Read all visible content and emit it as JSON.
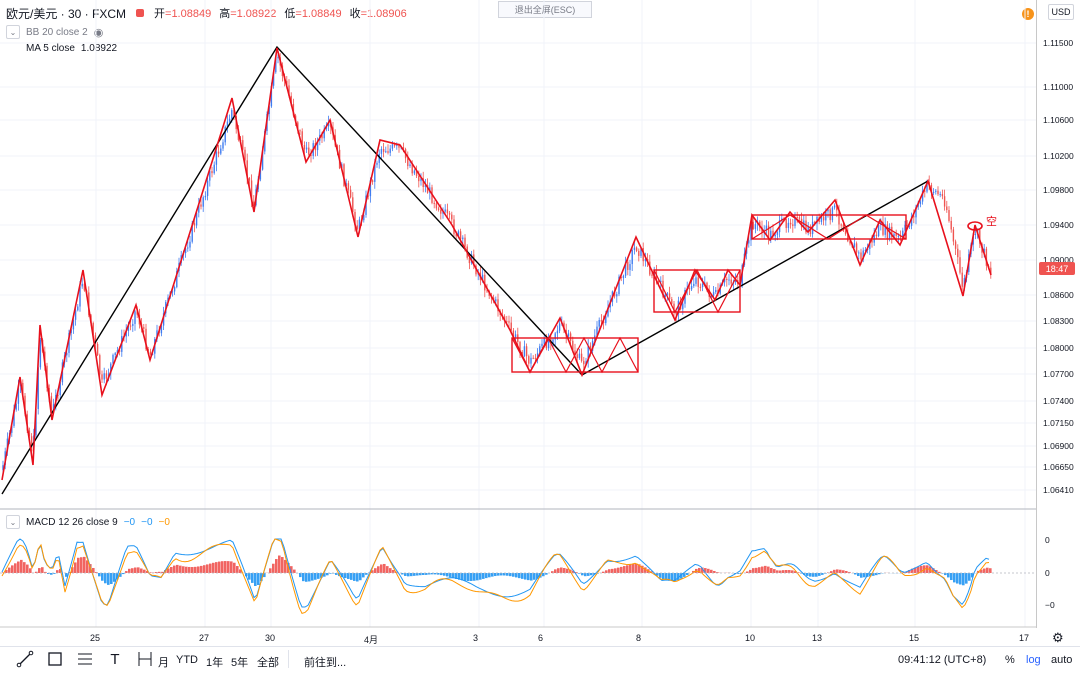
{
  "header": {
    "symbol": "欧元/美元 · 30 · FXCM",
    "open_label": "开",
    "open": "=1.08849",
    "high_label": "高",
    "high": "=1.08922",
    "low_label": "低",
    "low": "=1.08849",
    "close_label": "收",
    "close": "=1.08906"
  },
  "indicators": {
    "bb": "BB 20 close 2",
    "ma_label": "MA 5 close",
    "ma_value": "1.08922",
    "macd": "MACD 12 26 close 9",
    "macd_v1": "−0",
    "macd_v2": "−0",
    "macd_v3": "−0"
  },
  "exit_fullscreen": "退出全屏(ESC)",
  "currency": "USD",
  "warning_glyph": "!",
  "countdown": "18:47",
  "annotation": "空",
  "price_axis": [
    "1.11500",
    "1.11000",
    "1.10600",
    "1.10200",
    "1.09800",
    "1.09400",
    "1.09000",
    "1.08600",
    "1.08300",
    "1.08000",
    "1.07700",
    "1.07400",
    "1.07150",
    "1.06900",
    "1.06650",
    "1.06410"
  ],
  "macd_axis": [
    "0",
    "0",
    "−0"
  ],
  "time_axis": [
    "25",
    "27",
    "30",
    "4月",
    "3",
    "6",
    "8",
    "10",
    "13",
    "15",
    "17"
  ],
  "bottom": {
    "ranges": [
      "月",
      "YTD",
      "1年",
      "5年",
      "全部"
    ],
    "goto": "前往到...",
    "clock": "09:41:12 (UTC+8)",
    "pct": "%",
    "log": "log",
    "auto": "auto"
  },
  "colors": {
    "up": "#3f7cf0",
    "down": "#ef5350",
    "pattern": "#e8101c",
    "trend": "#000000",
    "macd_line": "#2196f3",
    "signal_line": "#ff9800"
  }
}
